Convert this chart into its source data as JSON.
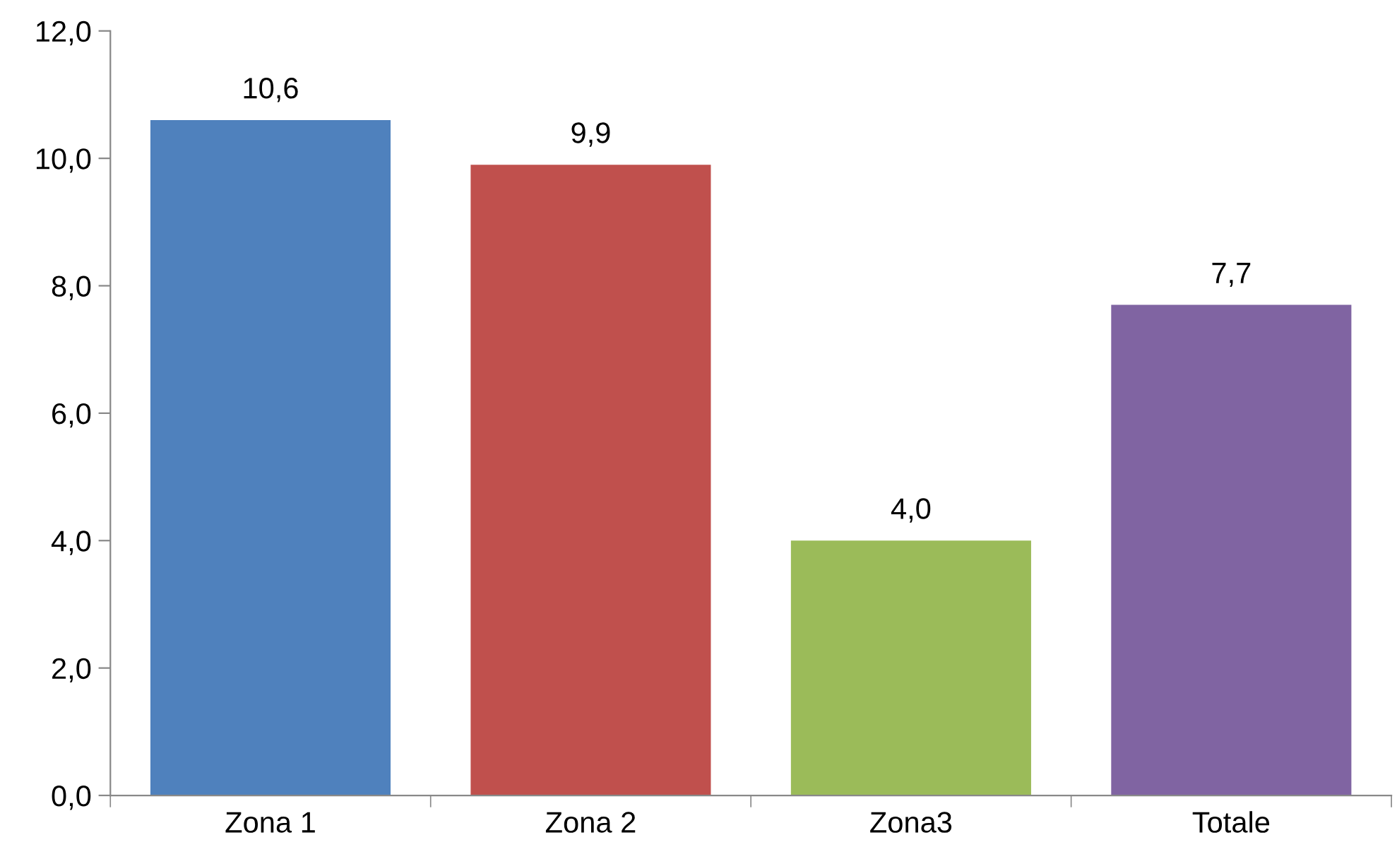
{
  "chart_data": {
    "type": "bar",
    "categories": [
      "Zona 1",
      "Zona 2",
      "Zona3",
      "Totale"
    ],
    "values": [
      10.6,
      9.9,
      4.0,
      7.7
    ],
    "colors": [
      "#4f81bd",
      "#c0504d",
      "#9bbb59",
      "#8064a2"
    ],
    "value_labels": [
      "10,6",
      "9,9",
      "4,0",
      "7,7"
    ],
    "ylim": [
      0,
      12
    ],
    "yticks": [
      {
        "value": 0,
        "label": "0,0"
      },
      {
        "value": 2,
        "label": "2,0"
      },
      {
        "value": 4,
        "label": "4,0"
      },
      {
        "value": 6,
        "label": "6,0"
      },
      {
        "value": 8,
        "label": "8,0"
      },
      {
        "value": 10,
        "label": "10,0"
      },
      {
        "value": 12,
        "label": "12,0"
      }
    ],
    "grid": false,
    "legend": false
  }
}
